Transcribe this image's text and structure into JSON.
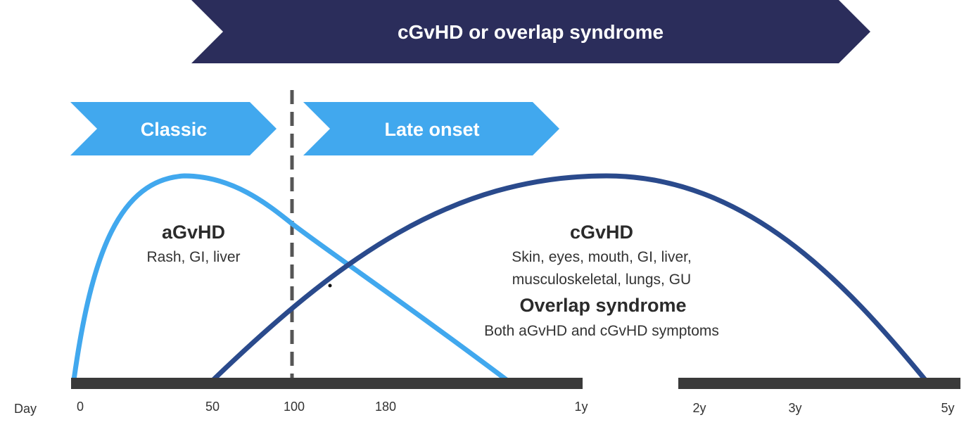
{
  "banners": {
    "chronic": "cGvHD or overlap syndrome",
    "classic": "Classic",
    "late_onset": "Late onset"
  },
  "labels": {
    "agvhd_title": "aGvHD",
    "agvhd_sites": "Rash, GI, liver",
    "cgvhd_title": "cGvHD",
    "cgvhd_sites_line1": "Skin, eyes, mouth, GI, liver,",
    "cgvhd_sites_line2": "musculoskeletal, lungs, GU",
    "overlap_title": "Overlap syndrome",
    "overlap_desc": "Both aGvHD and cGvHD symptoms"
  },
  "axis": {
    "unit_label": "Day",
    "ticks": [
      "0",
      "50",
      "100",
      "180",
      "1y",
      "2y",
      "3y",
      "5y"
    ]
  },
  "colors": {
    "chronic_banner": "#2b2d5b",
    "acute_banner": "#41a8ee",
    "acute_curve": "#41a8ee",
    "chronic_curve": "#2a4a8c",
    "axis": "#3a3a3a",
    "divider": "#555555"
  }
}
